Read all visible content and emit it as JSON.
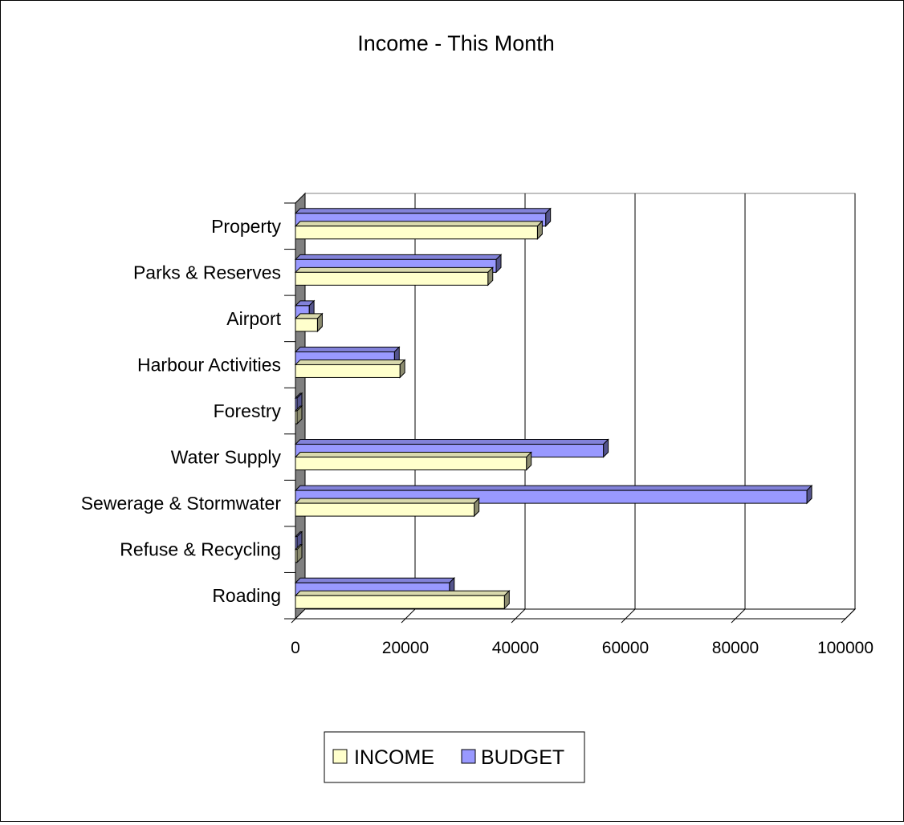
{
  "chart_data": {
    "type": "bar",
    "orientation": "horizontal",
    "style": "3d",
    "title": "Income - This Month",
    "xlabel": "",
    "ylabel": "",
    "categories": [
      "Property",
      "Parks & Reserves",
      "Airport",
      "Harbour Activities",
      "Forestry",
      "Water Supply",
      "Sewerage & Stormwater",
      "Refuse & Recycling",
      "Roading"
    ],
    "series": [
      {
        "name": "INCOME",
        "color": "#FFFFCC",
        "values": [
          44000,
          35000,
          4000,
          19000,
          0,
          42000,
          32500,
          0,
          38000
        ]
      },
      {
        "name": "BUDGET",
        "color": "#9999FF",
        "values": [
          45500,
          36500,
          2500,
          18000,
          0,
          56000,
          93000,
          0,
          28000
        ]
      }
    ],
    "xlim": [
      0,
      100000
    ],
    "xticks": [
      "0",
      "20000",
      "40000",
      "60000",
      "80000",
      "100000"
    ],
    "grid": true,
    "legend_position": "bottom"
  }
}
